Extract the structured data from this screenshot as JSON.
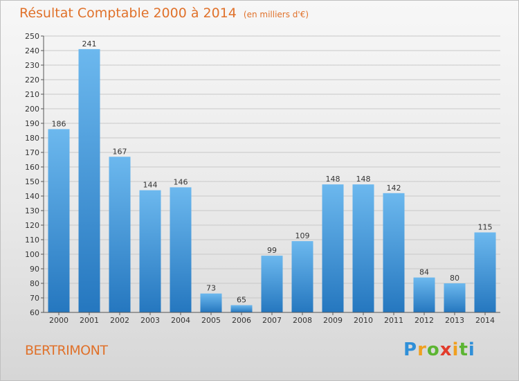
{
  "title": "Résultat Comptable 2000 à 2014",
  "subtitle": "(en milliers d'€)",
  "commune": "BERTRIMONT",
  "logo": {
    "letters": [
      "P",
      "r",
      "o",
      "x",
      "i",
      "t",
      "i"
    ],
    "colors": [
      "#2f8fd8",
      "#f0a020",
      "#5cb532",
      "#e23b2b",
      "#f0a020",
      "#5cb532",
      "#2f8fd8"
    ]
  },
  "colors": {
    "bar_top": "#6cb8ee",
    "bar_bottom": "#2577bf",
    "title": "#e0712a",
    "grid": "#c8c8c8"
  },
  "chart_data": {
    "type": "bar",
    "title": "Résultat Comptable 2000 à 2014",
    "xlabel": "",
    "ylabel": "",
    "ylim": [
      60,
      250
    ],
    "yticks": [
      60,
      70,
      80,
      90,
      100,
      110,
      120,
      130,
      140,
      150,
      160,
      170,
      180,
      190,
      200,
      210,
      220,
      230,
      240,
      250
    ],
    "grid": true,
    "categories": [
      "2000",
      "2001",
      "2002",
      "2003",
      "2004",
      "2005",
      "2006",
      "2007",
      "2008",
      "2009",
      "2010",
      "2011",
      "2012",
      "2013",
      "2014"
    ],
    "values": [
      186,
      241,
      167,
      144,
      146,
      73,
      65,
      99,
      109,
      148,
      148,
      142,
      84,
      80,
      115
    ]
  }
}
